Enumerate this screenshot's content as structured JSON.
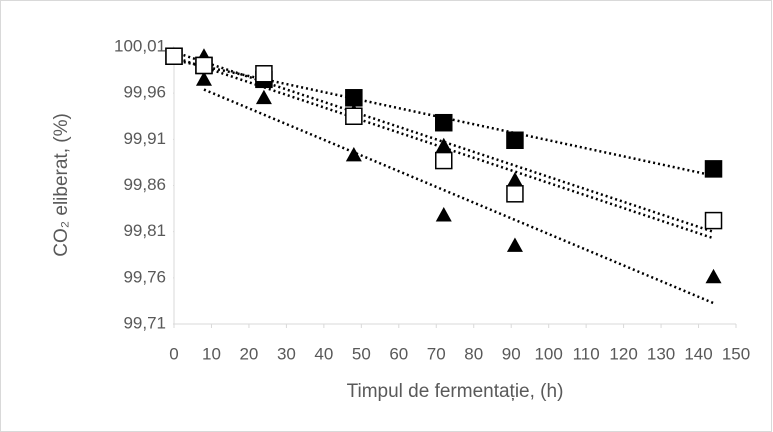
{
  "chart_data": {
    "type": "scatter",
    "x_label": "Timpul de fermentație, (h)",
    "y_label": "CO₂ eliberat, (%)",
    "xlim": [
      0,
      150
    ],
    "xticks": [
      0,
      10,
      20,
      30,
      40,
      50,
      60,
      70,
      80,
      90,
      100,
      110,
      120,
      130,
      140,
      150
    ],
    "ylim": [
      99.71,
      100.01
    ],
    "yticks": [
      {
        "value": 99.71,
        "label": "99,71"
      },
      {
        "value": 99.76,
        "label": "99,76"
      },
      {
        "value": 99.81,
        "label": "99,81"
      },
      {
        "value": 99.86,
        "label": "99,86"
      },
      {
        "value": 99.91,
        "label": "99,91"
      },
      {
        "value": 99.96,
        "label": "99,96"
      },
      {
        "value": 100.01,
        "label": "100,01"
      }
    ],
    "trendline": "linear",
    "series": [
      {
        "color": "#000000",
        "marker": "triangle",
        "x": [
          0,
          8,
          24,
          48,
          72,
          91,
          144
        ],
        "values": [
          100.0,
          100.0,
          99.98,
          99.94,
          99.903,
          99.866,
          99.82
        ]
      },
      {
        "color": "#000000",
        "marker": "triangle",
        "x": [
          8,
          24,
          48,
          72,
          91,
          144
        ],
        "values": [
          99.975,
          99.955,
          99.893,
          99.828,
          99.795,
          99.761
        ]
      },
      {
        "color": "#000000",
        "marker": "square-filled",
        "x": [
          0,
          8,
          24,
          48,
          72,
          91,
          144
        ],
        "values": [
          100.0,
          99.99,
          99.975,
          99.955,
          99.928,
          99.909,
          99.878
        ]
      },
      {
        "color": "#000000",
        "marker": "square-open",
        "x": [
          0,
          8,
          24,
          48,
          72,
          91,
          144
        ],
        "values": [
          100.0,
          99.99,
          99.981,
          99.935,
          99.887,
          99.851,
          99.822
        ]
      }
    ]
  }
}
